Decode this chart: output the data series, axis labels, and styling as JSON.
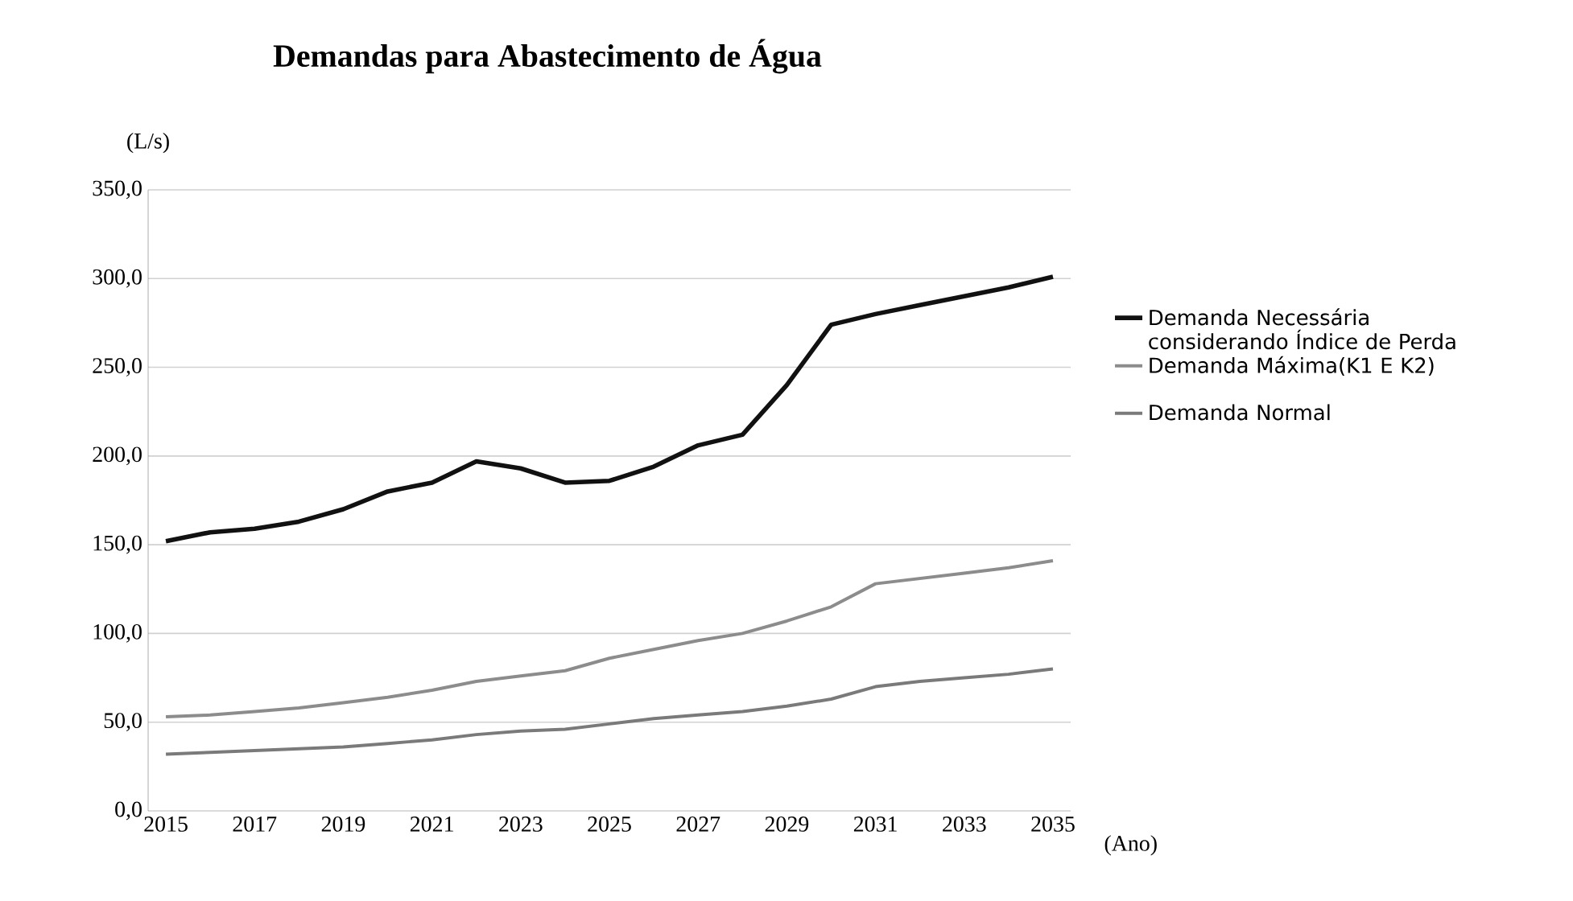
{
  "chart_data": {
    "type": "line",
    "title": "Demandas para Abastecimento de Água",
    "xlabel": "(Ano)",
    "ylabel": "(L/s)",
    "x": [
      2015,
      2016,
      2017,
      2018,
      2019,
      2020,
      2021,
      2022,
      2023,
      2024,
      2025,
      2026,
      2027,
      2028,
      2029,
      2030,
      2031,
      2032,
      2033,
      2034,
      2035
    ],
    "series": [
      {
        "name": "Demanda Necessária considerando Índice de Perda",
        "color": "#111111",
        "values": [
          152,
          157,
          159,
          163,
          170,
          180,
          185,
          197,
          193,
          185,
          186,
          194,
          206,
          212,
          240,
          274,
          280,
          285,
          290,
          295,
          301
        ]
      },
      {
        "name": "Demanda Máxima(K1 E K2)",
        "color": "#8c8c8c",
        "values": [
          53,
          54,
          56,
          58,
          61,
          64,
          68,
          73,
          76,
          79,
          86,
          91,
          96,
          100,
          107,
          115,
          128,
          131,
          134,
          137,
          141
        ]
      },
      {
        "name": "Demanda Normal",
        "color": "#7a7a7a",
        "values": [
          32,
          33,
          34,
          35,
          36,
          38,
          40,
          43,
          45,
          46,
          49,
          52,
          54,
          56,
          59,
          63,
          70,
          73,
          75,
          77,
          80
        ]
      }
    ],
    "xlim": [
      2014.6,
      2035.4
    ],
    "xticks": [
      2015,
      2017,
      2019,
      2021,
      2023,
      2025,
      2027,
      2029,
      2031,
      2033,
      2035
    ],
    "ylim": [
      0,
      350
    ],
    "yticks": [
      {
        "value": 0,
        "label": "0,0"
      },
      {
        "value": 50,
        "label": "50,0"
      },
      {
        "value": 100,
        "label": "100,0"
      },
      {
        "value": 150,
        "label": "150,0"
      },
      {
        "value": 200,
        "label": "200,0"
      },
      {
        "value": 250,
        "label": "250,0"
      },
      {
        "value": 300,
        "label": "300,0"
      },
      {
        "value": 350,
        "label": "350,0"
      }
    ],
    "grid": "y",
    "legend": "right",
    "marker": "none",
    "line_style": "solid"
  }
}
